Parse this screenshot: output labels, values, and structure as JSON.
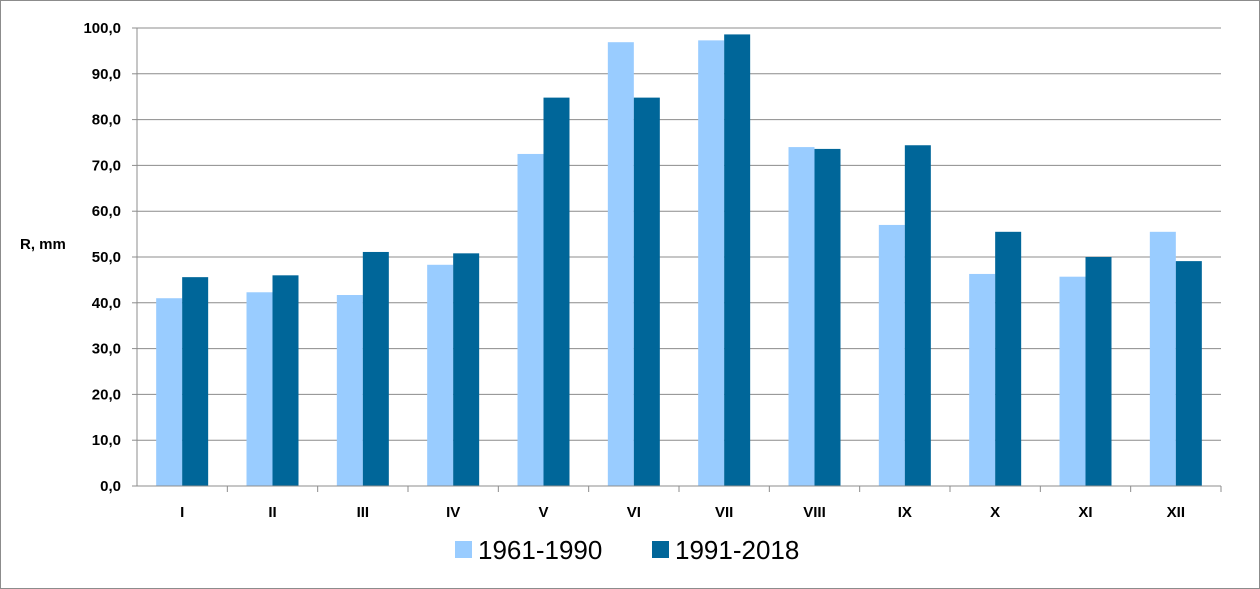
{
  "chart_data": {
    "type": "bar",
    "categories": [
      "I",
      "II",
      "III",
      "IV",
      "V",
      "VI",
      "VII",
      "VIII",
      "IX",
      "X",
      "XI",
      "XII"
    ],
    "series": [
      {
        "name": "1961-1990",
        "color": "#99ccff",
        "values": [
          41.0,
          42.3,
          41.7,
          48.3,
          72.5,
          96.9,
          97.3,
          74.0,
          57.0,
          46.3,
          45.7,
          55.5
        ]
      },
      {
        "name": "1991-2018",
        "color": "#006699",
        "values": [
          45.6,
          46.0,
          51.1,
          50.8,
          84.8,
          84.8,
          98.6,
          73.6,
          74.4,
          55.5,
          50.0,
          49.1
        ]
      }
    ],
    "ylabel": "R, mm",
    "ylim": [
      0,
      100
    ],
    "yticks": [
      "0,0",
      "10,0",
      "20,0",
      "30,0",
      "40,0",
      "50,0",
      "60,0",
      "70,0",
      "80,0",
      "90,0",
      "100,0"
    ],
    "grid": true,
    "legend_position": "bottom"
  }
}
